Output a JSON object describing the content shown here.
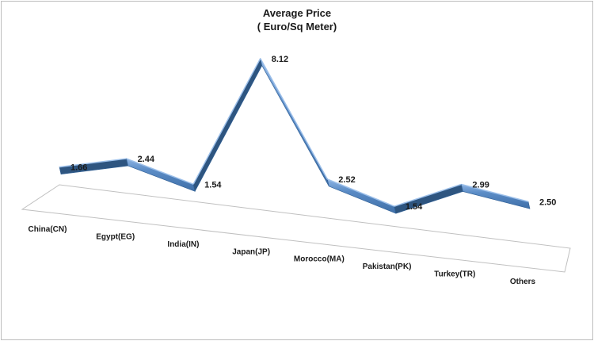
{
  "chart_data": {
    "type": "line",
    "title": "Average Price",
    "subtitle": "( Euro/Sq Meter)",
    "categories": [
      "China(CN)",
      "Egypt(EG)",
      "India(IN)",
      "Japan(JP)",
      "Morocco(MA)",
      "Pakistan(PK)",
      "Turkey(TR)",
      "Others"
    ],
    "series": [
      {
        "values": [
          1.66,
          2.44,
          1.54,
          8.12,
          2.52,
          1.54,
          2.99,
          2.5
        ],
        "labels": [
          "1.66",
          "2.44",
          "1.54",
          "8.12",
          "2.52",
          "1.54",
          "2.99",
          "2.50"
        ]
      }
    ],
    "style": "3d-ribbon",
    "line_color": "#4f81bd",
    "legend": "none",
    "grid": false
  }
}
